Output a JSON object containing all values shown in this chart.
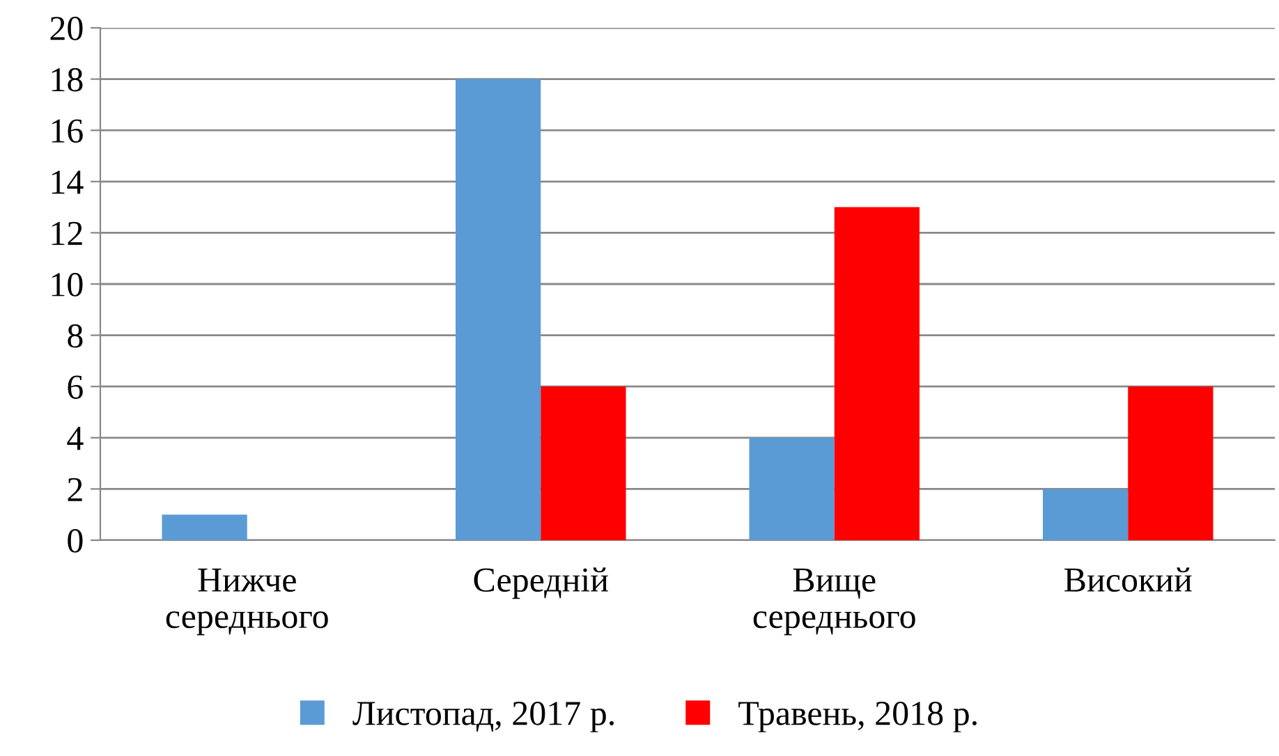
{
  "chart_data": {
    "type": "bar",
    "categories": [
      "Нижче\nсереднього",
      "Середній",
      "Вище\nсереднього",
      "Високий"
    ],
    "series": [
      {
        "name": "Листопад, 2017 р.",
        "color": "#5b9bd5",
        "values": [
          1,
          18,
          4,
          2
        ]
      },
      {
        "name": "Травень, 2018 р.",
        "color": "#ff0000",
        "values": [
          0,
          6,
          13,
          6
        ]
      }
    ],
    "ylim": [
      0,
      20
    ],
    "yticks": [
      0,
      2,
      4,
      6,
      8,
      10,
      12,
      14,
      16,
      18,
      20
    ],
    "grid": "y",
    "legend": "bottom"
  }
}
